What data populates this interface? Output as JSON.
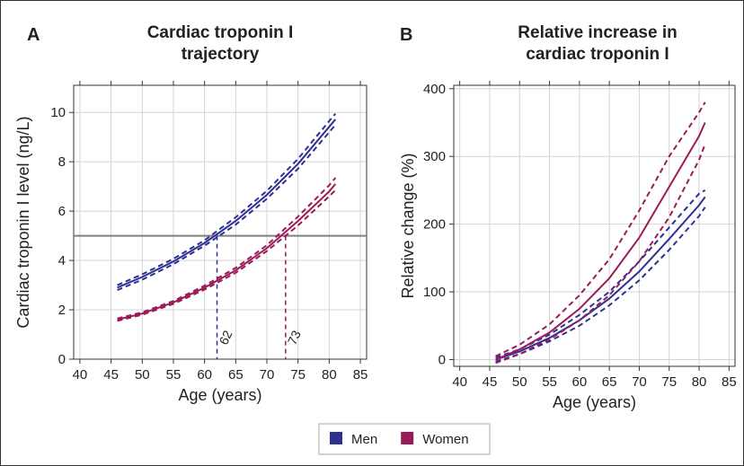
{
  "chart_data": [
    {
      "type": "line",
      "panel_label": "A",
      "title": "Cardiac troponin I\ntrajectory",
      "x_label": "Age (years)",
      "y_label": "Cardiac troponin I level (ng/L)",
      "xlim": [
        39,
        86
      ],
      "xticks": [
        40,
        45,
        50,
        55,
        60,
        65,
        70,
        75,
        80,
        85
      ],
      "ylim": [
        0,
        11.1
      ],
      "yticks": [
        0,
        2,
        4,
        6,
        8,
        10
      ],
      "grid": true,
      "x": [
        46,
        50,
        55,
        60,
        65,
        70,
        75,
        80,
        81
      ],
      "series": [
        {
          "name": "Men",
          "color": "#2e3192",
          "values": [
            2.9,
            3.33,
            3.96,
            4.71,
            5.6,
            6.66,
            7.92,
            9.42,
            9.72
          ],
          "lower": [
            2.8,
            3.22,
            3.85,
            4.6,
            5.45,
            6.5,
            7.72,
            9.2,
            9.5
          ],
          "upper": [
            3.0,
            3.44,
            4.07,
            4.82,
            5.75,
            6.82,
            8.12,
            9.65,
            9.95
          ]
        },
        {
          "name": "Women",
          "color": "#9b1b5a",
          "values": [
            1.6,
            1.85,
            2.3,
            2.9,
            3.6,
            4.5,
            5.6,
            6.8,
            7.1
          ],
          "lower": [
            1.55,
            1.8,
            2.24,
            2.82,
            3.5,
            4.38,
            5.42,
            6.6,
            6.85
          ],
          "upper": [
            1.65,
            1.9,
            2.36,
            2.98,
            3.7,
            4.62,
            5.78,
            7.05,
            7.35
          ]
        }
      ],
      "hline": {
        "value": 5,
        "color": "#808080"
      },
      "markers": [
        {
          "x": 62,
          "color": "#2e3192"
        },
        {
          "x": 73,
          "color": "#9b1b5a"
        }
      ]
    },
    {
      "type": "line",
      "panel_label": "B",
      "title": "Relative increase in\ncardiac troponin I",
      "x_label": "Age (years)",
      "y_label": "Relative change (%)",
      "xlim": [
        39,
        86
      ],
      "xticks": [
        40,
        45,
        50,
        55,
        60,
        65,
        70,
        75,
        80,
        85
      ],
      "ylim": [
        -10,
        405
      ],
      "yticks": [
        0,
        100,
        200,
        300,
        400
      ],
      "grid": true,
      "x": [
        46,
        50,
        55,
        60,
        65,
        70,
        75,
        80,
        81
      ],
      "series": [
        {
          "color": "#2e3192",
          "values": [
            0,
            12,
            32,
            58,
            90,
            130,
            178,
            228,
            240
          ],
          "lower": [
            -3,
            8,
            27,
            50,
            80,
            117,
            162,
            212,
            225
          ],
          "upper": [
            3,
            15,
            37,
            66,
            100,
            145,
            195,
            245,
            250
          ]
        },
        {
          "color": "#9b1b5a",
          "values": [
            0,
            15,
            40,
            75,
            120,
            180,
            255,
            330,
            350
          ],
          "lower": [
            -5,
            8,
            30,
            58,
            95,
            145,
            210,
            295,
            318
          ],
          "upper": [
            5,
            22,
            52,
            95,
            148,
            220,
            300,
            365,
            380
          ]
        }
      ]
    }
  ]
}
